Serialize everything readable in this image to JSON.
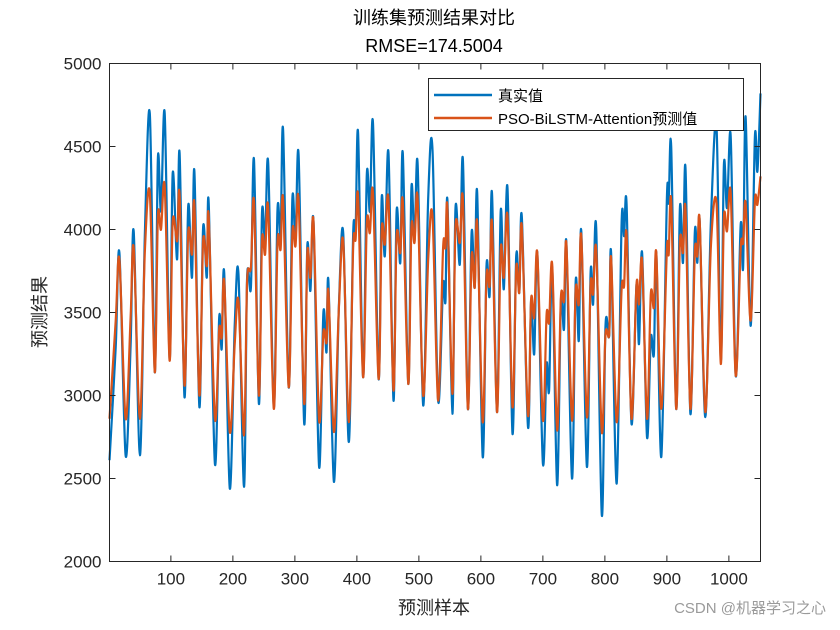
{
  "chart_data": {
    "type": "line",
    "title": "训练集预测结果对比",
    "subtitle": "RMSE=174.5004",
    "xlabel": "预测样本",
    "ylabel": "预测结果",
    "xlim": [
      1,
      1051
    ],
    "ylim": [
      2000,
      5000
    ],
    "xticks": [
      100,
      200,
      300,
      400,
      500,
      600,
      700,
      800,
      900,
      1000
    ],
    "yticks": [
      2000,
      2500,
      3000,
      3500,
      4000,
      4500,
      5000
    ],
    "grid": false,
    "legend_position": "top-right",
    "x": [
      1,
      11,
      17,
      27,
      35,
      40,
      50,
      58,
      66,
      74,
      79,
      84,
      90,
      98,
      103,
      110,
      114,
      122,
      128,
      134,
      138,
      146,
      152,
      158,
      161,
      171,
      178,
      182,
      186,
      195,
      203,
      209,
      218,
      223,
      229,
      234,
      242,
      247,
      252,
      257,
      266,
      272,
      277,
      281,
      290,
      296,
      301,
      306,
      315,
      320,
      325,
      330,
      339,
      346,
      351,
      354,
      363,
      371,
      378,
      387,
      394,
      398,
      402,
      410,
      416,
      421,
      426,
      435,
      440,
      445,
      451,
      459,
      464,
      470,
      474,
      483,
      488,
      493,
      498,
      507,
      515,
      522,
      531,
      539,
      543,
      546,
      554,
      559,
      566,
      571,
      579,
      585,
      590,
      594,
      603,
      609,
      614,
      618,
      626,
      632,
      637,
      643,
      651,
      657,
      662,
      666,
      676,
      681,
      686,
      691,
      700,
      706,
      710,
      715,
      723,
      729,
      734,
      738,
      747,
      753,
      758,
      762,
      771,
      777,
      781,
      786,
      795,
      801,
      807,
      810,
      819,
      827,
      831,
      835,
      843,
      851,
      855,
      860,
      868,
      874,
      879,
      883,
      891,
      900,
      903,
      907,
      915,
      921,
      926,
      930,
      938,
      945,
      949,
      953,
      962,
      971,
      980,
      987,
      992,
      997,
      1003,
      1011,
      1019,
      1023,
      1027,
      1035,
      1042,
      1046,
      1051
    ],
    "series": [
      {
        "name": "真实值",
        "color": "#0072BD",
        "values": [
          2610,
          3290,
          3860,
          2640,
          3300,
          3990,
          2640,
          3960,
          4700,
          3140,
          4430,
          4110,
          4700,
          3220,
          4340,
          3820,
          4460,
          2990,
          4140,
          3710,
          4350,
          2930,
          4010,
          3710,
          4160,
          2590,
          3470,
          3280,
          3740,
          2440,
          3420,
          3730,
          2450,
          3710,
          3650,
          4420,
          2950,
          4100,
          3930,
          4400,
          2930,
          4120,
          3960,
          4600,
          3050,
          4190,
          3930,
          4450,
          2830,
          3900,
          3630,
          4050,
          2570,
          3500,
          3260,
          3690,
          2480,
          3540,
          3980,
          2720,
          3980,
          4000,
          4580,
          3110,
          4330,
          4110,
          4640,
          3100,
          4190,
          3840,
          4460,
          2970,
          4110,
          3800,
          4460,
          3070,
          4250,
          3930,
          4400,
          2940,
          4190,
          4480,
          2970,
          3670,
          3570,
          4180,
          2890,
          4130,
          3790,
          4420,
          2920,
          3980,
          3650,
          4220,
          2630,
          3780,
          3600,
          4220,
          2900,
          4110,
          3640,
          4250,
          2770,
          3840,
          3620,
          4080,
          2810,
          3570,
          3250,
          3860,
          2590,
          3190,
          3030,
          3770,
          2460,
          3570,
          3400,
          3920,
          2500,
          3690,
          3330,
          3990,
          2570,
          3740,
          3550,
          4010,
          2280,
          3420,
          3360,
          3860,
          2470,
          4040,
          3960,
          4150,
          2830,
          3670,
          3310,
          3860,
          2750,
          3350,
          3250,
          3860,
          2630,
          4190,
          4160,
          4500,
          2920,
          4130,
          3800,
          4370,
          2890,
          3980,
          3800,
          4050,
          2870,
          4050,
          4620,
          3210,
          4390,
          4130,
          4560,
          3120,
          4030,
          3770,
          4680,
          3420,
          4560,
          4350,
          4820
        ]
      },
      {
        "name": "PSO-BiLSTM-Attention预测值",
        "color": "#D95319",
        "values": [
          2860,
          3450,
          3820,
          2860,
          3470,
          3890,
          2860,
          3860,
          4220,
          3140,
          4080,
          4000,
          4260,
          3210,
          4050,
          3930,
          4210,
          3060,
          3980,
          3850,
          4150,
          3000,
          3930,
          3780,
          4080,
          2860,
          3400,
          3350,
          3690,
          2780,
          3310,
          3570,
          2760,
          3690,
          3770,
          4170,
          3000,
          3930,
          3850,
          4130,
          2920,
          3920,
          3880,
          4180,
          3050,
          3980,
          3900,
          4180,
          2950,
          3860,
          3710,
          4050,
          2850,
          3380,
          3320,
          3630,
          2780,
          3530,
          3930,
          2840,
          3900,
          3940,
          4200,
          3110,
          4040,
          3980,
          4220,
          3100,
          4000,
          3910,
          4180,
          3030,
          3960,
          3860,
          4170,
          3070,
          4010,
          3920,
          4190,
          3000,
          3820,
          4080,
          2970,
          3890,
          3890,
          4130,
          3010,
          4020,
          3920,
          4180,
          2920,
          3840,
          3650,
          4040,
          2840,
          3720,
          3660,
          4040,
          2900,
          3880,
          3710,
          4080,
          2930,
          3770,
          3620,
          4020,
          2880,
          3580,
          3470,
          3860,
          2850,
          3490,
          3440,
          3790,
          2790,
          3590,
          3570,
          3910,
          2850,
          3640,
          3550,
          3960,
          2870,
          3670,
          3610,
          3880,
          2780,
          3370,
          3370,
          3830,
          2840,
          3640,
          3660,
          3970,
          2860,
          3670,
          3550,
          3810,
          2860,
          3610,
          3530,
          3860,
          2920,
          3880,
          3850,
          4170,
          2920,
          3920,
          3860,
          4120,
          2920,
          3860,
          3840,
          4050,
          2900,
          3900,
          4160,
          3190,
          4070,
          3990,
          4220,
          3120,
          3890,
          3920,
          4160,
          3450,
          4170,
          4150,
          4320
        ]
      }
    ]
  },
  "watermark": "CSDN @机器学习之心"
}
